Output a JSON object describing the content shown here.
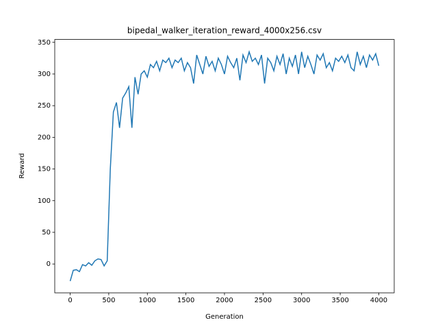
{
  "chart_data": {
    "type": "line",
    "title": "bipedal_walker_iteration_reward_4000x256.csv",
    "x_label": "Generation",
    "y_label": "Reward",
    "x": [
      0,
      40,
      80,
      120,
      160,
      200,
      240,
      280,
      320,
      360,
      400,
      440,
      480,
      520,
      560,
      600,
      640,
      680,
      720,
      760,
      800,
      840,
      880,
      920,
      960,
      1000,
      1040,
      1080,
      1120,
      1160,
      1200,
      1240,
      1280,
      1320,
      1360,
      1400,
      1440,
      1480,
      1520,
      1560,
      1600,
      1640,
      1680,
      1720,
      1760,
      1800,
      1840,
      1880,
      1920,
      1960,
      2000,
      2040,
      2080,
      2120,
      2160,
      2200,
      2240,
      2280,
      2320,
      2360,
      2400,
      2440,
      2480,
      2520,
      2560,
      2600,
      2640,
      2680,
      2720,
      2760,
      2800,
      2840,
      2880,
      2920,
      2960,
      3000,
      3040,
      3080,
      3120,
      3160,
      3200,
      3240,
      3280,
      3320,
      3360,
      3400,
      3440,
      3480,
      3520,
      3560,
      3600,
      3640,
      3680,
      3720,
      3760,
      3800,
      3840,
      3880,
      3920,
      3960,
      4000
    ],
    "series": [
      {
        "color": "#1f77b4",
        "values": [
          -27,
          -10,
          -9,
          -12,
          -1,
          -3,
          2,
          -2,
          5,
          8,
          7,
          -3,
          5,
          150,
          240,
          255,
          215,
          262,
          270,
          280,
          215,
          295,
          268,
          300,
          305,
          295,
          315,
          310,
          320,
          305,
          322,
          318,
          325,
          310,
          322,
          318,
          325,
          305,
          318,
          310,
          285,
          330,
          315,
          300,
          328,
          312,
          320,
          305,
          325,
          315,
          300,
          328,
          318,
          310,
          325,
          290,
          330,
          318,
          335,
          320,
          325,
          315,
          330,
          285,
          325,
          318,
          305,
          328,
          315,
          332,
          300,
          325,
          312,
          330,
          300,
          335,
          310,
          328,
          315,
          300,
          330,
          322,
          332,
          310,
          318,
          305,
          325,
          320,
          328,
          318,
          330,
          310,
          305,
          335,
          315,
          328,
          310,
          330,
          322,
          332,
          313
        ]
      }
    ],
    "xlim": [
      -200,
      4200
    ],
    "ylim": [
      -45.5,
      354.5
    ],
    "xticks": [
      0,
      500,
      1000,
      1500,
      2000,
      2500,
      3000,
      3500,
      4000
    ],
    "yticks": [
      0,
      50,
      100,
      150,
      200,
      250,
      300,
      350
    ]
  }
}
